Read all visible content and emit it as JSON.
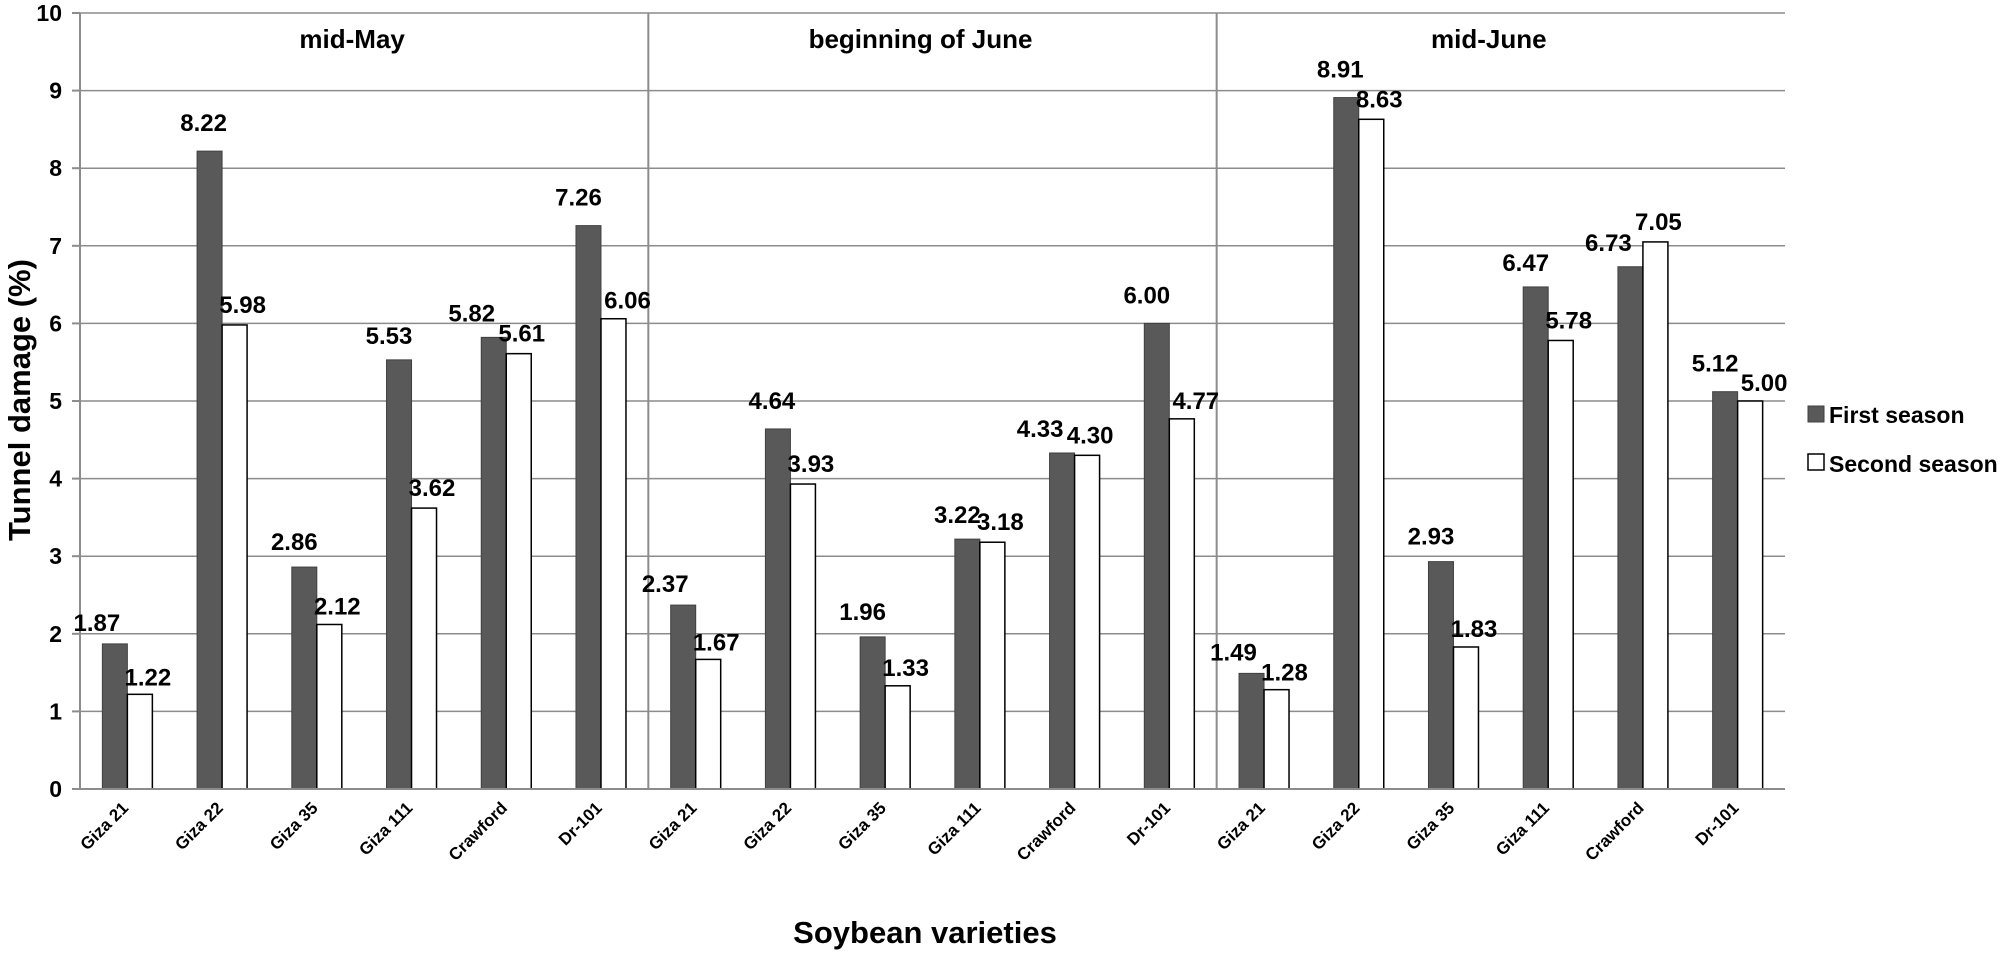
{
  "chart_data": {
    "type": "bar",
    "xlabel": "Soybean varieties",
    "ylabel": "Tunnel damage (%)",
    "ylim": [
      0,
      10
    ],
    "yticks": [
      "0",
      "1",
      "2",
      "3",
      "4",
      "5",
      "6",
      "7",
      "8",
      "9",
      "10"
    ],
    "grid": true,
    "legend_position": "right",
    "categories": [
      "Giza 21",
      "Giza 22",
      "Giza 35",
      "Giza 111",
      "Crawford",
      "Dr-101"
    ],
    "series": [
      {
        "name": "First season",
        "color": "#595959"
      },
      {
        "name": "Second season",
        "color": "#ffffff"
      }
    ],
    "panels": [
      {
        "title": "mid-May",
        "first": [
          1.87,
          8.22,
          2.86,
          5.53,
          5.82,
          7.26
        ],
        "second": [
          1.22,
          5.98,
          2.12,
          3.62,
          5.61,
          6.06
        ]
      },
      {
        "title": "beginning of June",
        "first": [
          2.37,
          4.64,
          1.96,
          3.22,
          4.33,
          6.0
        ],
        "second": [
          1.67,
          3.93,
          1.33,
          3.18,
          4.3,
          4.77
        ]
      },
      {
        "title": "mid-June",
        "first": [
          1.49,
          8.91,
          2.93,
          6.47,
          6.73,
          5.12
        ],
        "second": [
          1.28,
          8.63,
          1.83,
          5.78,
          7.05,
          5.0
        ]
      }
    ]
  }
}
